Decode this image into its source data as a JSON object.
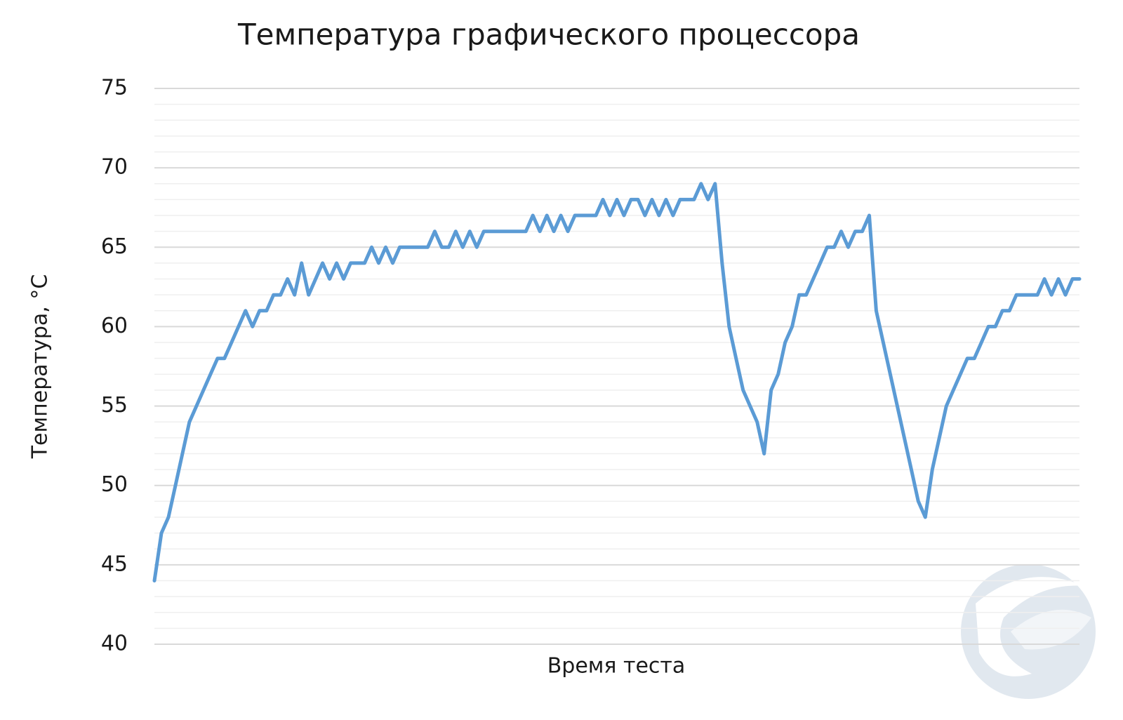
{
  "chart_data": {
    "type": "line",
    "title": "Температура графического процессора",
    "xlabel": "Время теста",
    "ylabel": "Температура, °C",
    "ylim": [
      40,
      75
    ],
    "yticks": [
      40,
      45,
      50,
      55,
      60,
      65,
      70,
      75
    ],
    "minor_yticks": [
      41,
      42,
      43,
      44,
      46,
      47,
      48,
      49,
      51,
      52,
      53,
      54,
      56,
      57,
      58,
      59,
      61,
      62,
      63,
      64,
      66,
      67,
      68,
      69,
      71,
      72,
      73,
      74
    ],
    "grid": true,
    "color": "#5b9bd5",
    "values": [
      44,
      47,
      48,
      50,
      52,
      54,
      55,
      56,
      57,
      58,
      58,
      59,
      60,
      61,
      60,
      61,
      61,
      62,
      62,
      63,
      62,
      64,
      62,
      63,
      64,
      63,
      64,
      63,
      64,
      64,
      64,
      65,
      64,
      65,
      64,
      65,
      65,
      65,
      65,
      65,
      66,
      65,
      65,
      66,
      65,
      66,
      65,
      66,
      66,
      66,
      66,
      66,
      66,
      66,
      67,
      66,
      67,
      66,
      67,
      66,
      67,
      67,
      67,
      67,
      68,
      67,
      68,
      67,
      68,
      68,
      67,
      68,
      67,
      68,
      67,
      68,
      68,
      68,
      69,
      68,
      69,
      64,
      60,
      58,
      56,
      55,
      54,
      52,
      56,
      57,
      59,
      60,
      62,
      62,
      63,
      64,
      65,
      65,
      66,
      65,
      66,
      66,
      67,
      61,
      59,
      57,
      55,
      53,
      51,
      49,
      48,
      51,
      53,
      55,
      56,
      57,
      58,
      58,
      59,
      60,
      60,
      61,
      61,
      62,
      62,
      62,
      62,
      63,
      62,
      63,
      62,
      63,
      63
    ]
  }
}
